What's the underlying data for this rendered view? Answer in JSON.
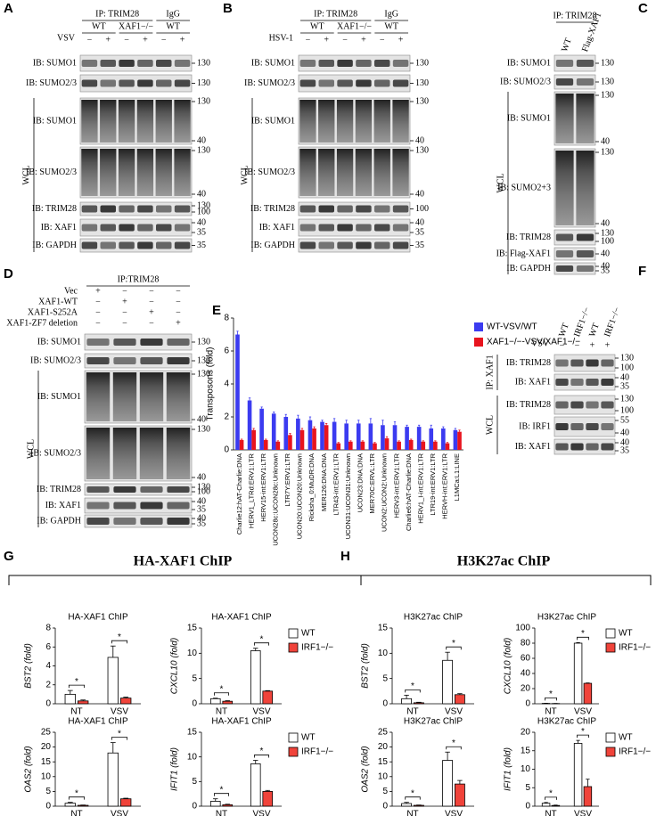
{
  "figure": {
    "panel_labels": {
      "G": "G",
      "H": "H"
    },
    "groups": [
      {
        "label": "G",
        "title": "HA-XAF1 ChIP"
      },
      {
        "label": "H",
        "title": "H3K27ac ChIP"
      }
    ]
  },
  "blots": {
    "A": {
      "label": "A",
      "ip": "IP: TRIM28",
      "igg": "IgG",
      "treatment": "VSV",
      "groups": [
        "WT",
        "XAF1−/−",
        "WT"
      ],
      "signs": [
        "−",
        "+",
        "−",
        "+",
        "−",
        "+"
      ],
      "wcl": "WCL",
      "rows": [
        {
          "label": "IB:  SUMO1",
          "markers": [
            130
          ]
        },
        {
          "label": "IB:  SUMO2/3",
          "markers": [
            130
          ]
        },
        {
          "label": "IB:  SUMO1",
          "markers": [
            130,
            40
          ]
        },
        {
          "label": "IB:  SUMO2/3",
          "markers": [
            130,
            40
          ]
        },
        {
          "label": "IB:  TRIM28",
          "markers": [
            130,
            100
          ]
        },
        {
          "label": "IB:  XAF1",
          "markers": [
            40,
            35
          ]
        },
        {
          "label": "IB:  GAPDH",
          "markers": [
            35
          ]
        }
      ]
    },
    "B": {
      "label": "B",
      "ip": "IP: TRIM28",
      "igg": "IgG",
      "treatment": "HSV-1",
      "groups": [
        "WT",
        "XAF1−/−",
        "WT"
      ],
      "signs": [
        "−",
        "+",
        "−",
        "+",
        "−",
        "+"
      ],
      "wcl": "WCL",
      "rows": [
        {
          "label": "IB:  SUMO1",
          "markers": [
            130
          ]
        },
        {
          "label": "IB:  SUMO2/3",
          "markers": [
            130
          ]
        },
        {
          "label": "IB:  SUMO1",
          "markers": [
            130,
            40
          ]
        },
        {
          "label": "IB:  SUMO2/3",
          "markers": [
            130,
            40
          ]
        },
        {
          "label": "IB:  TRIM28",
          "markers": [
            100
          ]
        },
        {
          "label": "IB:  XAF1",
          "markers": [
            40,
            35
          ]
        },
        {
          "label": "IB:  GAPDH",
          "markers": [
            35
          ]
        }
      ]
    },
    "C": {
      "label": "C",
      "ip": "IP: TRIM28",
      "lanes": [
        "WT",
        "Flag-XAF1"
      ],
      "wcl": "WCL",
      "rows": [
        {
          "label": "IB:  SUMO1",
          "markers": [
            130
          ]
        },
        {
          "label": "IB:  SUMO2/3",
          "markers": [
            130
          ]
        },
        {
          "label": "IB:  SUMO1",
          "markers": [
            130,
            40
          ]
        },
        {
          "label": "IB:  SUMO2+3",
          "markers": [
            130,
            40
          ]
        },
        {
          "label": "IB:  TRIM28",
          "markers": [
            130,
            100
          ]
        },
        {
          "label": "IB:  Flag-XAF1",
          "markers": [
            40
          ]
        },
        {
          "label": "IB:  GAPDH",
          "markers": [
            40,
            35
          ]
        }
      ]
    },
    "D": {
      "label": "D",
      "ip": "IP:TRIM28",
      "wcl": "WCL",
      "treatments": [
        {
          "label": "Vec",
          "signs": [
            "+",
            "−",
            "−",
            "−"
          ]
        },
        {
          "label": "XAF1-WT",
          "signs": [
            "−",
            "+",
            "−",
            "−"
          ]
        },
        {
          "label": "XAF1-S252A",
          "signs": [
            "−",
            "−",
            "+",
            "−"
          ]
        },
        {
          "label": "XAF1-ZF7 deletion",
          "signs": [
            "−",
            "−",
            "−",
            "+"
          ]
        }
      ],
      "rows": [
        {
          "label": "IB:  SUMO1",
          "markers": [
            130
          ]
        },
        {
          "label": "IB:  SUMO2/3",
          "markers": [
            130
          ]
        },
        {
          "label": "IB:  SUMO1",
          "markers": [
            130,
            40
          ]
        },
        {
          "label": "IB:  SUMO2/3",
          "markers": [
            130,
            40
          ]
        },
        {
          "label": "IB:  TRIM28",
          "markers": [
            130,
            100
          ]
        },
        {
          "label": "IB:  XAF1",
          "markers": [
            40,
            35
          ]
        },
        {
          "label": "IB:  GAPDH",
          "markers": [
            40,
            35
          ]
        }
      ]
    },
    "F": {
      "label": "F",
      "ip": "IP: XAF1",
      "lanes": [
        "WT",
        "IRF1−/−",
        "WT",
        "IRF1−/−"
      ],
      "treatment": "VSV",
      "signs": [
        "−",
        "−",
        "+",
        "+"
      ],
      "wcl": "WCL",
      "rows": [
        {
          "label": "IB:  TRIM28",
          "markers": [
            130,
            100
          ]
        },
        {
          "label": "IB:  XAF1",
          "markers": [
            40,
            35
          ]
        },
        {
          "label": "IB:  TRIM28",
          "markers": [
            130,
            100
          ]
        },
        {
          "label": "IB:  IRF1",
          "markers": [
            55,
            40
          ]
        },
        {
          "label": "IB:  XAF1",
          "markers": [
            40,
            35
          ]
        }
      ]
    }
  },
  "chart_data": [
    {
      "type": "bar",
      "label": "E",
      "ylabel": "Transposons (fold)",
      "ylim": [
        0,
        8
      ],
      "yticks": [
        0,
        2,
        4,
        6,
        8
      ],
      "categories": [
        "Charlie12:hAT-Charlie:DNA",
        "HERV1_LTRd:ERV1:LTR",
        "HERV15-int:ERV1:LTR",
        "UCON28c:UCON28c:Unknown",
        "LTR7Y:ERV1:LTR",
        "UCON20:UCON20:Unknown",
        "Ricksha_0:MuDR:DNA",
        "MER126:DNA:DNA",
        "LTR43-int:ERV1:LTR",
        "UCON31:UCON31:Unknown",
        "UCON23:DNA:DNA",
        "MER70C:ERVL:LTR",
        "UCON2:UCON2:Unknown",
        "HERV3-int:ERV1:LTR",
        "Charlie6:hAT-Charlie:DNA",
        "HERV1_I-int:ERV1:LTR",
        "LTR19-int:ERV1:LTR",
        "HERVH-int:ERV1:LTR",
        "L1MCa:L1:LINE"
      ],
      "series": [
        {
          "name": "WT-VSV/WT",
          "color": "#3b3bf0",
          "values": [
            7.0,
            3.0,
            2.5,
            2.2,
            2.0,
            1.9,
            1.8,
            1.7,
            1.7,
            1.6,
            1.6,
            1.6,
            1.5,
            1.5,
            1.4,
            1.4,
            1.3,
            1.3,
            1.2
          ],
          "errors": [
            0.2,
            0.15,
            0.1,
            0.1,
            0.15,
            0.2,
            0.2,
            0.1,
            0.2,
            0.2,
            0.2,
            0.3,
            0.3,
            0.2,
            0.1,
            0.1,
            0.2,
            0.1,
            0.1
          ]
        },
        {
          "name": "XAF1−/−-VSV/XAF1−/−",
          "color": "#e8141e",
          "values": [
            0.6,
            1.2,
            0.6,
            0.5,
            0.9,
            1.2,
            1.3,
            1.5,
            0.4,
            0.5,
            0.5,
            0.4,
            0.7,
            0.5,
            0.6,
            0.5,
            0.5,
            0.4,
            1.1
          ],
          "errors": [
            0.05,
            0.1,
            0.05,
            0.05,
            0.1,
            0.1,
            0.1,
            0.1,
            0.05,
            0.05,
            0.05,
            0.05,
            0.1,
            0.05,
            0.05,
            0.05,
            0.05,
            0.05,
            0.1
          ]
        }
      ]
    },
    {
      "type": "bar",
      "title": "HA-XAF1 ChIP",
      "ylabel": "BST2 (fold)",
      "ylim": [
        0,
        8
      ],
      "yticks": [
        0,
        2,
        4,
        6,
        8
      ],
      "categories": [
        "NT",
        "VSV"
      ],
      "annotations": [
        "*",
        "*"
      ],
      "series": [
        {
          "color": "#ffffff",
          "values": [
            1.0,
            4.9
          ],
          "errors": [
            0.4,
            1.2
          ]
        },
        {
          "color": "#f0433a",
          "values": [
            0.3,
            0.6
          ],
          "errors": [
            0.1,
            0.1
          ]
        }
      ]
    },
    {
      "type": "bar",
      "title": "HA-XAF1 ChIP",
      "ylabel": "CXCL10 (fold)",
      "ylim": [
        0,
        15
      ],
      "yticks": [
        0,
        5,
        10,
        15
      ],
      "categories": [
        "NT",
        "VSV"
      ],
      "annotations": [
        "*",
        "*"
      ],
      "series": [
        {
          "name": "WT",
          "color": "#ffffff",
          "values": [
            1.0,
            10.5
          ],
          "errors": [
            0.1,
            0.5
          ]
        },
        {
          "name": "IRF1−/−",
          "color": "#f0433a",
          "values": [
            0.5,
            2.5
          ],
          "errors": [
            0.1,
            0.1
          ]
        }
      ]
    },
    {
      "type": "bar",
      "title": "HA-XAF1 ChIP",
      "ylabel": "OAS2 (fold)",
      "ylim": [
        0,
        25
      ],
      "yticks": [
        0,
        5,
        10,
        15,
        20,
        25
      ],
      "categories": [
        "NT",
        "VSV"
      ],
      "annotations": [
        "*",
        "*"
      ],
      "series": [
        {
          "color": "#ffffff",
          "values": [
            1.0,
            18
          ],
          "errors": [
            0.3,
            3.5
          ]
        },
        {
          "color": "#f0433a",
          "values": [
            0.3,
            2.5
          ],
          "errors": [
            0.1,
            0.2
          ]
        }
      ]
    },
    {
      "type": "bar",
      "title": "HA-XAF1 ChIP",
      "ylabel": "IFIT1 (fold)",
      "ylim": [
        0,
        15
      ],
      "yticks": [
        0,
        5,
        10,
        15
      ],
      "categories": [
        "NT",
        "VSV"
      ],
      "annotations": [
        "*",
        "*"
      ],
      "series": [
        {
          "name": "WT",
          "color": "#ffffff",
          "values": [
            1.0,
            8.6
          ],
          "errors": [
            0.5,
            0.7
          ]
        },
        {
          "name": "IRF1−/−",
          "color": "#f0433a",
          "values": [
            0.3,
            3.0
          ],
          "errors": [
            0.1,
            0.2
          ]
        }
      ]
    },
    {
      "type": "bar",
      "title": "H3K27ac ChIP",
      "ylabel": "BST2 (fold)",
      "ylim": [
        0,
        15
      ],
      "yticks": [
        0,
        5,
        10,
        15
      ],
      "categories": [
        "NT",
        "VSV"
      ],
      "annotations": [
        "*",
        "*"
      ],
      "series": [
        {
          "color": "#ffffff",
          "values": [
            1.0,
            8.6
          ],
          "errors": [
            0.7,
            1.6
          ]
        },
        {
          "color": "#f0433a",
          "values": [
            0.2,
            1.8
          ],
          "errors": [
            0.1,
            0.2
          ]
        }
      ]
    },
    {
      "type": "bar",
      "title": "H3K27ac ChIP",
      "ylabel": "CXCL10 (fold)",
      "ylim": [
        0,
        100
      ],
      "yticks": [
        0,
        20,
        40,
        60,
        80,
        100
      ],
      "categories": [
        "NT",
        "VSV"
      ],
      "annotations": [
        "*",
        "*"
      ],
      "series": [
        {
          "name": "WT",
          "color": "#ffffff",
          "values": [
            0.5,
            80
          ],
          "errors": [
            0.2,
            0.8
          ]
        },
        {
          "name": "IRF1−/−",
          "color": "#f0433a",
          "values": [
            0.3,
            27
          ],
          "errors": [
            0.1,
            0.5
          ]
        }
      ]
    },
    {
      "type": "bar",
      "title": "H3K27ac ChIP",
      "ylabel": "OAS2 (fold)",
      "ylim": [
        0,
        25
      ],
      "yticks": [
        0,
        5,
        10,
        15,
        20,
        25
      ],
      "categories": [
        "NT",
        "VSV"
      ],
      "annotations": [
        "*",
        "*"
      ],
      "series": [
        {
          "color": "#ffffff",
          "values": [
            0.9,
            15.5
          ],
          "errors": [
            0.4,
            2.8
          ]
        },
        {
          "color": "#f0433a",
          "values": [
            0.3,
            7.5
          ],
          "errors": [
            0.1,
            1.2
          ]
        }
      ]
    },
    {
      "type": "bar",
      "title": "H3K27ac ChIP",
      "ylabel": "IFIT1 (fold)",
      "ylim": [
        0,
        20
      ],
      "yticks": [
        0,
        5,
        10,
        15,
        20
      ],
      "categories": [
        "NT",
        "VSV"
      ],
      "annotations": [
        "*",
        "*"
      ],
      "series": [
        {
          "name": "WT",
          "color": "#ffffff",
          "values": [
            0.8,
            17
          ],
          "errors": [
            0.2,
            0.8
          ]
        },
        {
          "name": "IRF1−/−",
          "color": "#f0433a",
          "values": [
            0.2,
            5.3
          ],
          "errors": [
            0.1,
            2
          ]
        }
      ]
    }
  ]
}
